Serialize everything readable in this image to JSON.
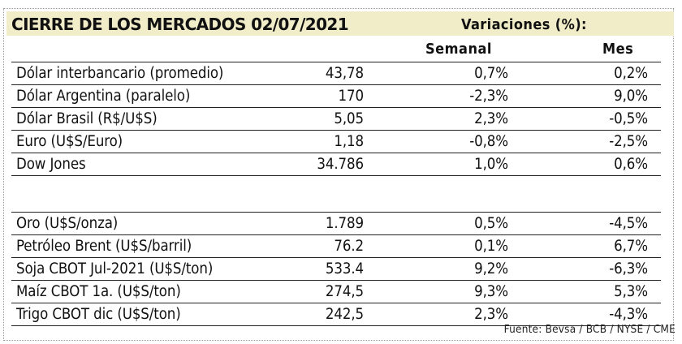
{
  "header": {
    "title": "CIERRE DE LOS MERCADOS 02/07/2021",
    "variations_label": "Variaciones (%):",
    "col_weekly": "Semanal",
    "col_month": "Mes"
  },
  "groups": [
    [
      {
        "name": "Dólar interbancario (promedio)",
        "value": "43,78",
        "weekly": "0,7%",
        "month": "0,2%"
      },
      {
        "name": "Dólar Argentina (paralelo)",
        "value": "170",
        "weekly": "-2,3%",
        "month": "9,0%"
      },
      {
        "name": "Dólar Brasil (R$/U$S)",
        "value": "5,05",
        "weekly": "2,3%",
        "month": "-0,5%"
      },
      {
        "name": "Euro (U$S/Euro)",
        "value": "1,18",
        "weekly": "-0,8%",
        "month": "-2,5%"
      },
      {
        "name": "Dow Jones",
        "value": "34.786",
        "weekly": "1,0%",
        "month": "0,6%"
      }
    ],
    [
      {
        "name": "Oro (U$S/onza)",
        "value": "1.789",
        "weekly": "0,5%",
        "month": "-4,5%"
      },
      {
        "name": "Petróleo Brent (U$S/barril)",
        "value": "76.2",
        "weekly": "0,1%",
        "month": "6,7%"
      },
      {
        "name": "Soja CBOT Jul-2021 (U$S/ton)",
        "value": "533.4",
        "weekly": "9,2%",
        "month": "-6,3%"
      },
      {
        "name": "Maíz CBOT 1a. (U$S/ton)",
        "value": "274,5",
        "weekly": "9,3%",
        "month": "5,3%"
      },
      {
        "name": "Trigo CBOT dic (U$S/ton)",
        "value": "242,5",
        "weekly": "2,3%",
        "month": "-4,3%"
      }
    ]
  ],
  "footer": {
    "source": "Fuente: Bevsa / BCB / NYSE / CME"
  },
  "colors": {
    "header_bg": "#f2edc9",
    "text": "#111111",
    "rule": "#222222"
  }
}
